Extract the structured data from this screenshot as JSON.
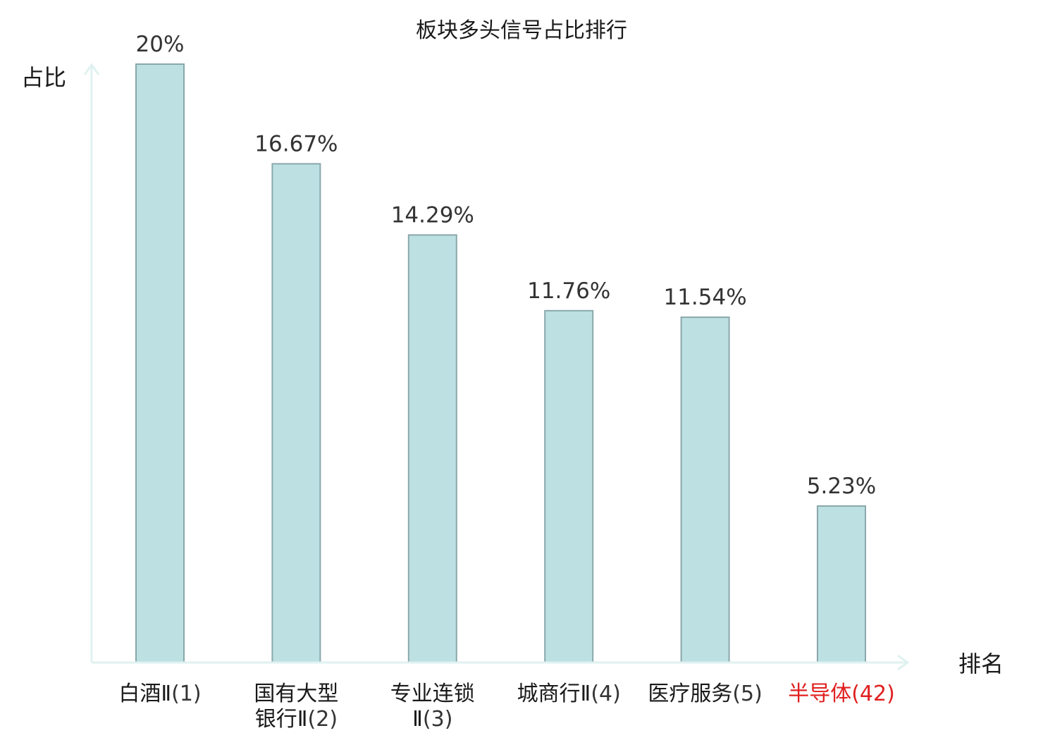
{
  "chart_data": {
    "type": "bar",
    "title": "板块多头信号占比排行",
    "ylabel": "占比",
    "xlabel": "排名",
    "ylim": [
      0,
      20
    ],
    "grid": false,
    "legend": "none",
    "value_suffix": "%",
    "categories": [
      {
        "lines": [
          "白酒Ⅱ"
        ],
        "rank": "(1)",
        "highlight": false
      },
      {
        "lines": [
          "国有大型",
          "银行Ⅱ"
        ],
        "rank": "(2)",
        "highlight": false
      },
      {
        "lines": [
          "专业连锁",
          "Ⅱ"
        ],
        "rank": "(3)",
        "highlight": false
      },
      {
        "lines": [
          "城商行Ⅱ"
        ],
        "rank": "(4)",
        "highlight": false
      },
      {
        "lines": [
          "医疗服务"
        ],
        "rank": "(5)",
        "highlight": false
      },
      {
        "lines": [
          "半导体"
        ],
        "rank": "(42)",
        "highlight": true
      }
    ],
    "values": [
      20,
      16.67,
      14.29,
      11.76,
      11.54,
      5.23
    ],
    "value_labels": [
      "20%",
      "16.67%",
      "14.29%",
      "11.76%",
      "11.54%",
      "5.23%"
    ],
    "colors": {
      "bar_fill": "#bde0e3",
      "bar_stroke": "#8aa8ab",
      "axis": "#e0f2f0",
      "highlight": "#e02020"
    }
  }
}
